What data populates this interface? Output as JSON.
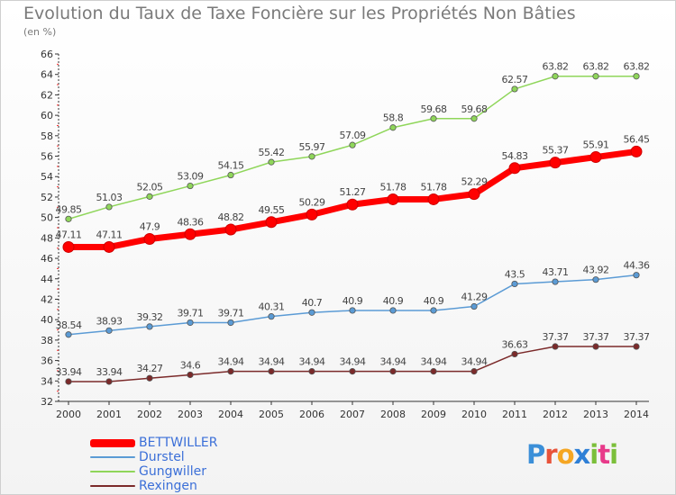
{
  "header": {
    "title": "Evolution du Taux de Taxe Foncière sur les Propriétés Non Bâties",
    "unit_note": "(en %)"
  },
  "logo": {
    "text": "Proxiti",
    "letters": [
      "P",
      "r",
      "o",
      "x",
      "i",
      "t",
      "i"
    ],
    "letter_colors": [
      "#3b8fd8",
      "#e8533a",
      "#f5a623",
      "#2e7fd6",
      "#7bbf3a",
      "#e83a8a",
      "#7bbf3a"
    ]
  },
  "chart_data": {
    "type": "line",
    "title": "Evolution du Taux de Taxe Foncière sur les Propriétés Non Bâties",
    "ylabel": "(en %)",
    "xlabel": "",
    "x": [
      "2000",
      "2001",
      "2002",
      "2003",
      "2004",
      "2005",
      "2006",
      "2007",
      "2008",
      "2009",
      "2010",
      "2011",
      "2012",
      "2013",
      "2014"
    ],
    "ylim": [
      32,
      66
    ],
    "yticks": [
      32,
      34,
      36,
      38,
      40,
      42,
      44,
      46,
      48,
      50,
      52,
      54,
      56,
      58,
      60,
      62,
      64,
      66
    ],
    "grid": false,
    "legend_position": "bottom-left",
    "series": [
      {
        "name": "BETTWILLER",
        "color": "#ff0000",
        "emphasis": true,
        "values": [
          47.11,
          47.11,
          47.9,
          48.36,
          48.82,
          49.55,
          50.29,
          51.27,
          51.78,
          51.78,
          52.29,
          54.83,
          55.37,
          55.91,
          56.45
        ],
        "labels": [
          "47.11",
          "47.11",
          "47.9",
          "48.36",
          "48.82",
          "49.55",
          "50.29",
          "51.27",
          "51.78",
          "51.78",
          "52.29",
          "54.83",
          "55.37",
          "55.91",
          "56.45"
        ]
      },
      {
        "name": "Durstel",
        "color": "#5b9bd5",
        "values": [
          38.54,
          38.93,
          39.32,
          39.71,
          39.71,
          40.31,
          40.7,
          40.9,
          40.9,
          40.9,
          41.29,
          43.5,
          43.71,
          43.92,
          44.36
        ],
        "labels": [
          "38.54",
          "38.93",
          "39.32",
          "39.71",
          "39.71",
          "40.31",
          "40.7",
          "40.9",
          "40.9",
          "40.9",
          "41.29",
          "43.5",
          "43.71",
          "43.92",
          "44.36"
        ]
      },
      {
        "name": "Gungwiller",
        "color": "#8fd65a",
        "values": [
          49.85,
          51.03,
          52.05,
          53.09,
          54.15,
          55.42,
          55.97,
          57.09,
          58.8,
          59.68,
          59.68,
          62.57,
          63.82,
          63.82,
          63.82
        ],
        "labels": [
          "49.85",
          "51.03",
          "52.05",
          "53.09",
          "54.15",
          "55.42",
          "55.97",
          "57.09",
          "58.8",
          "59.68",
          "59.68",
          "62.57",
          "63.82",
          "63.82",
          "63.82"
        ]
      },
      {
        "name": "Rexingen",
        "color": "#7b2a2a",
        "values": [
          33.94,
          33.94,
          34.27,
          34.6,
          34.94,
          34.94,
          34.94,
          34.94,
          34.94,
          34.94,
          34.94,
          36.63,
          37.37,
          37.37,
          37.37
        ],
        "labels": [
          "33.94",
          "33.94",
          "34.27",
          "34.6",
          "34.94",
          "34.94",
          "34.94",
          "34.94",
          "34.94",
          "34.94",
          "34.94",
          "36.63",
          "37.37",
          "37.37",
          "37.37"
        ]
      }
    ]
  }
}
